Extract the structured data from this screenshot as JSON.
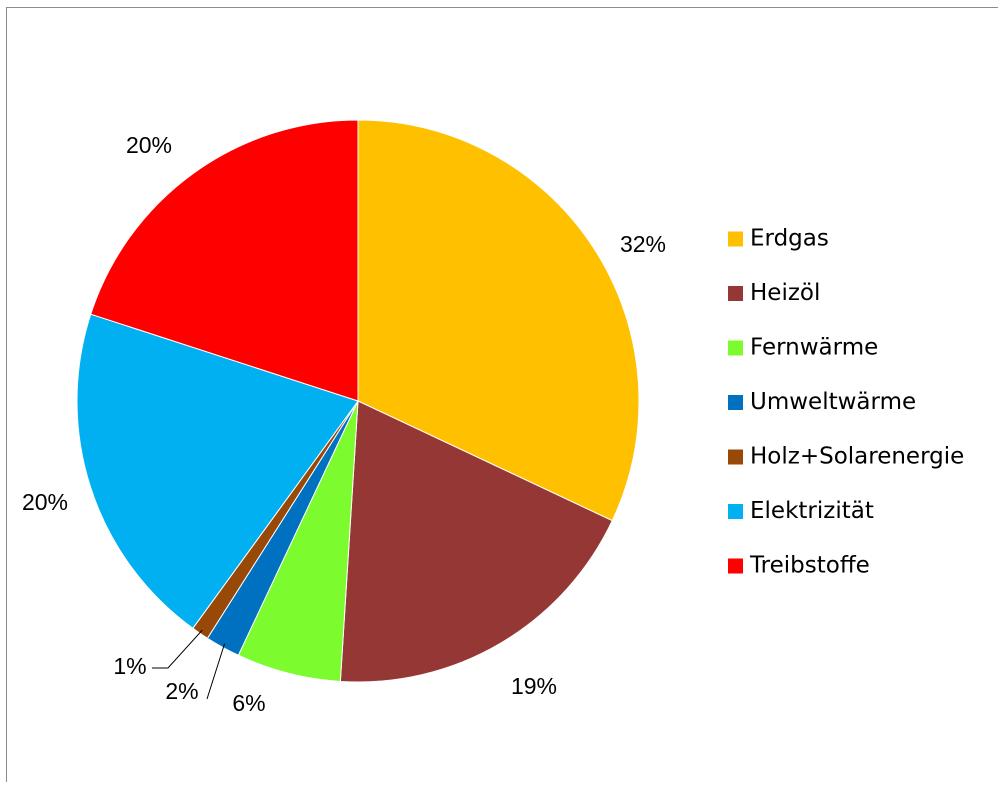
{
  "chart_data": {
    "type": "pie",
    "title": "",
    "slices": [
      {
        "name": "Erdgas",
        "value": 32,
        "label": "32%",
        "color": "#FFC000"
      },
      {
        "name": "Heizöl",
        "value": 19,
        "label": "19%",
        "color": "#953735"
      },
      {
        "name": "Fernwärme",
        "value": 6,
        "label": "6%",
        "color": "#7CFC2E"
      },
      {
        "name": "Umweltwärme",
        "value": 2,
        "label": "2%",
        "color": "#0070C0"
      },
      {
        "name": "Holz+Solarenergie",
        "value": 1,
        "label": "1%",
        "color": "#984807"
      },
      {
        "name": "Elektrizität",
        "value": 20,
        "label": "20%",
        "color": "#00B0F0"
      },
      {
        "name": "Treibstoffe",
        "value": 20,
        "label": "20%",
        "color": "#FF0000"
      }
    ],
    "legend_position": "right"
  }
}
